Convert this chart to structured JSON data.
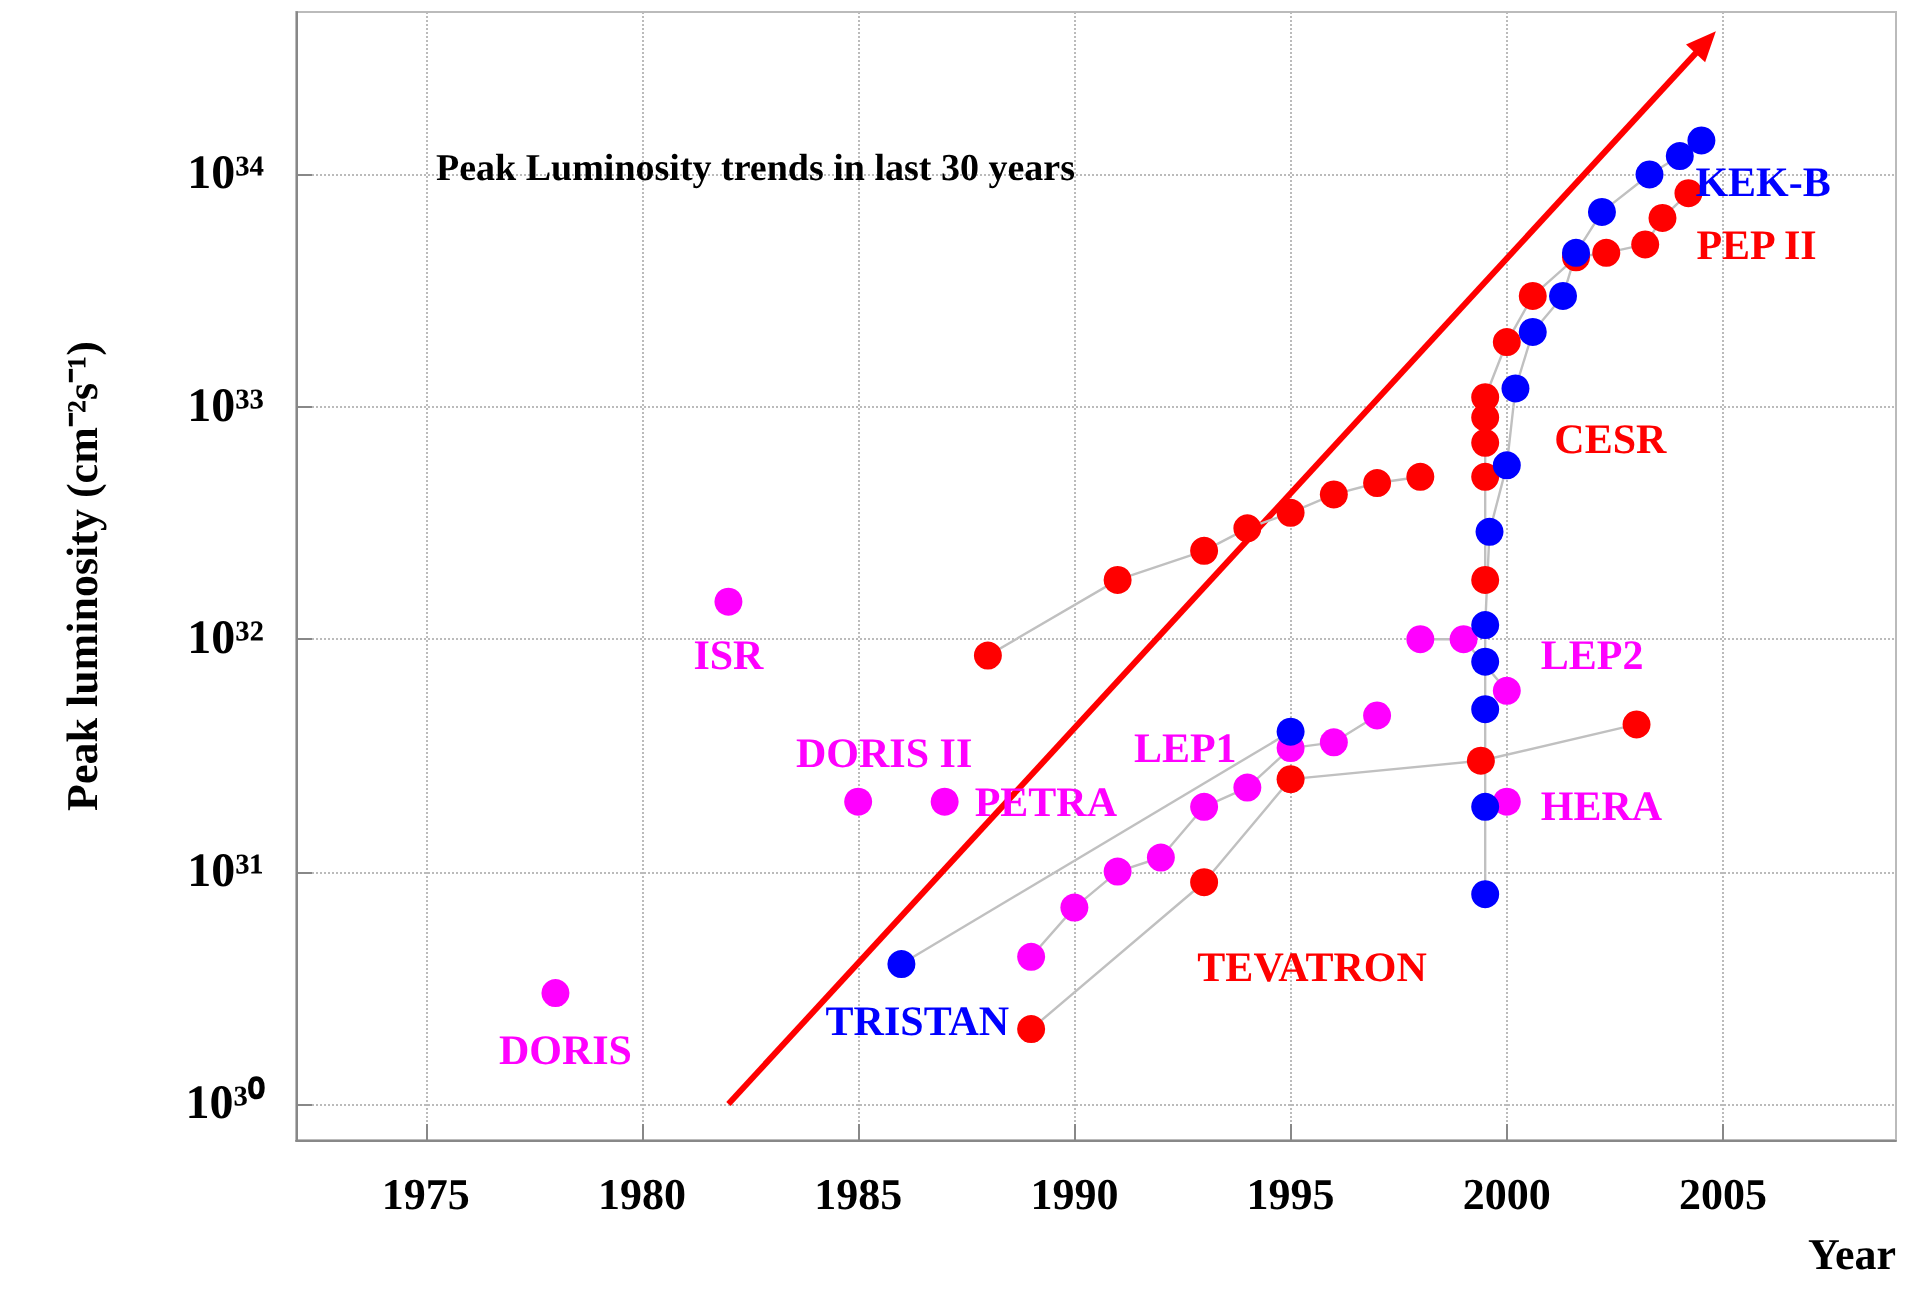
{
  "chart_data": {
    "type": "line",
    "title": "Peak Luminosity trends in last 30 years",
    "xlabel": "Year",
    "ylabel": "Peak luminosity (cm⁻²s⁻¹)",
    "log": "y",
    "grid": true,
    "marker": "circle",
    "xlim": [
      1972,
      2009
    ],
    "ylim": [
      7e+29,
      5e+34
    ],
    "xticks": [
      1975,
      1980,
      1985,
      1990,
      1995,
      2000,
      2005
    ],
    "yticks": [
      {
        "value": 1e+30,
        "label": "10³⁰"
      },
      {
        "value": 1e+31,
        "label": "10³¹"
      },
      {
        "value": 1e+32,
        "label": "10³²"
      },
      {
        "value": 1e+33,
        "label": "10³³"
      },
      {
        "value": 1e+34,
        "label": "10³⁴"
      }
    ],
    "series": [
      {
        "name": "DORIS",
        "color": "#ff00ff",
        "x": [
          1978
        ],
        "values": [
          3e+30
        ]
      },
      {
        "name": "ISR",
        "color": "#ff00ff",
        "x": [
          1982
        ],
        "values": [
          1.45e+32
        ]
      },
      {
        "name": "DORIS II",
        "color": "#ff00ff",
        "x": [
          1985
        ],
        "values": [
          2e+31
        ]
      },
      {
        "name": "PETRA",
        "color": "#ff00ff",
        "x": [
          1987
        ],
        "values": [
          2e+31
        ]
      },
      {
        "name": "LEP1",
        "color": "#ff00ff",
        "x": [
          1989,
          1990,
          1991,
          1992,
          1993,
          1994,
          1995,
          1996,
          1997
        ],
        "values": [
          4.3e+30,
          7e+30,
          1e+31,
          1.15e+31,
          1.9e+31,
          2.3e+31,
          3.4e+31,
          3.6e+31,
          4.7e+31
        ]
      },
      {
        "name": "LEP2",
        "color": "#ff00ff",
        "x": [
          1998,
          1999,
          2000
        ],
        "values": [
          1e+32,
          1e+32,
          6e+31
        ]
      },
      {
        "name": "HERA",
        "color": "#ff00ff",
        "x": [
          2000
        ],
        "values": [
          2e+31
        ]
      },
      {
        "name": "TRISTAN",
        "color": "#0000ff",
        "x": [
          1986,
          1995
        ],
        "values": [
          4e+30,
          4e+31
        ]
      },
      {
        "name": "TEVATRON",
        "color": "#ff0000",
        "x": [
          1989,
          1993,
          1995,
          1999.4,
          2003
        ],
        "values": [
          2.1e+30,
          9e+30,
          2.5e+31,
          3e+31,
          4.3e+31
        ]
      },
      {
        "name": "CESR",
        "color": "#ff0000",
        "x": [
          1988,
          1991,
          1993,
          1994,
          1995,
          1996,
          1997,
          1998
        ],
        "values": [
          8.5e+31,
          1.8e+32,
          2.4e+32,
          3e+32,
          3.5e+32,
          4.2e+32,
          4.7e+32,
          5e+32
        ]
      },
      {
        "name": "PEP II",
        "color": "#ff0000",
        "x": [
          1999.5,
          1999.5,
          1999.5,
          1999.5,
          1999.5,
          2000,
          2000.6,
          2001.6,
          2002.3,
          2003.2,
          2003.6,
          2004.2
        ],
        "values": [
          1.8e+32,
          5e+32,
          7e+32,
          9e+32,
          1.1e+33,
          1.9e+33,
          3e+33,
          4.4e+33,
          4.6e+33,
          5e+33,
          6.5e+33,
          8.3e+33
        ]
      },
      {
        "name": "KEK-B",
        "color": "#0000ff",
        "x": [
          1999.5,
          1999.5,
          1999.5,
          1999.5,
          1999.5,
          1999.6,
          2000,
          2000.2,
          2000.6,
          2001.3,
          2001.6,
          2002.2,
          2003.3,
          2004,
          2004.5
        ],
        "values": [
          8e+30,
          1.9e+31,
          5e+31,
          8e+31,
          1.15e+32,
          2.9e+32,
          5.6e+32,
          1.2e+33,
          2.1e+33,
          3e+33,
          4.6e+33,
          6.9e+33,
          1e+34,
          1.2e+34,
          1.4e+34
        ]
      },
      {
        "line_style": "solid",
        "marker": "triangle",
        "color": "#ff0000",
        "x": [
          1982,
          2004.6
        ],
        "values": [
          1e+30,
          3.7e+34
        ]
      }
    ]
  }
}
